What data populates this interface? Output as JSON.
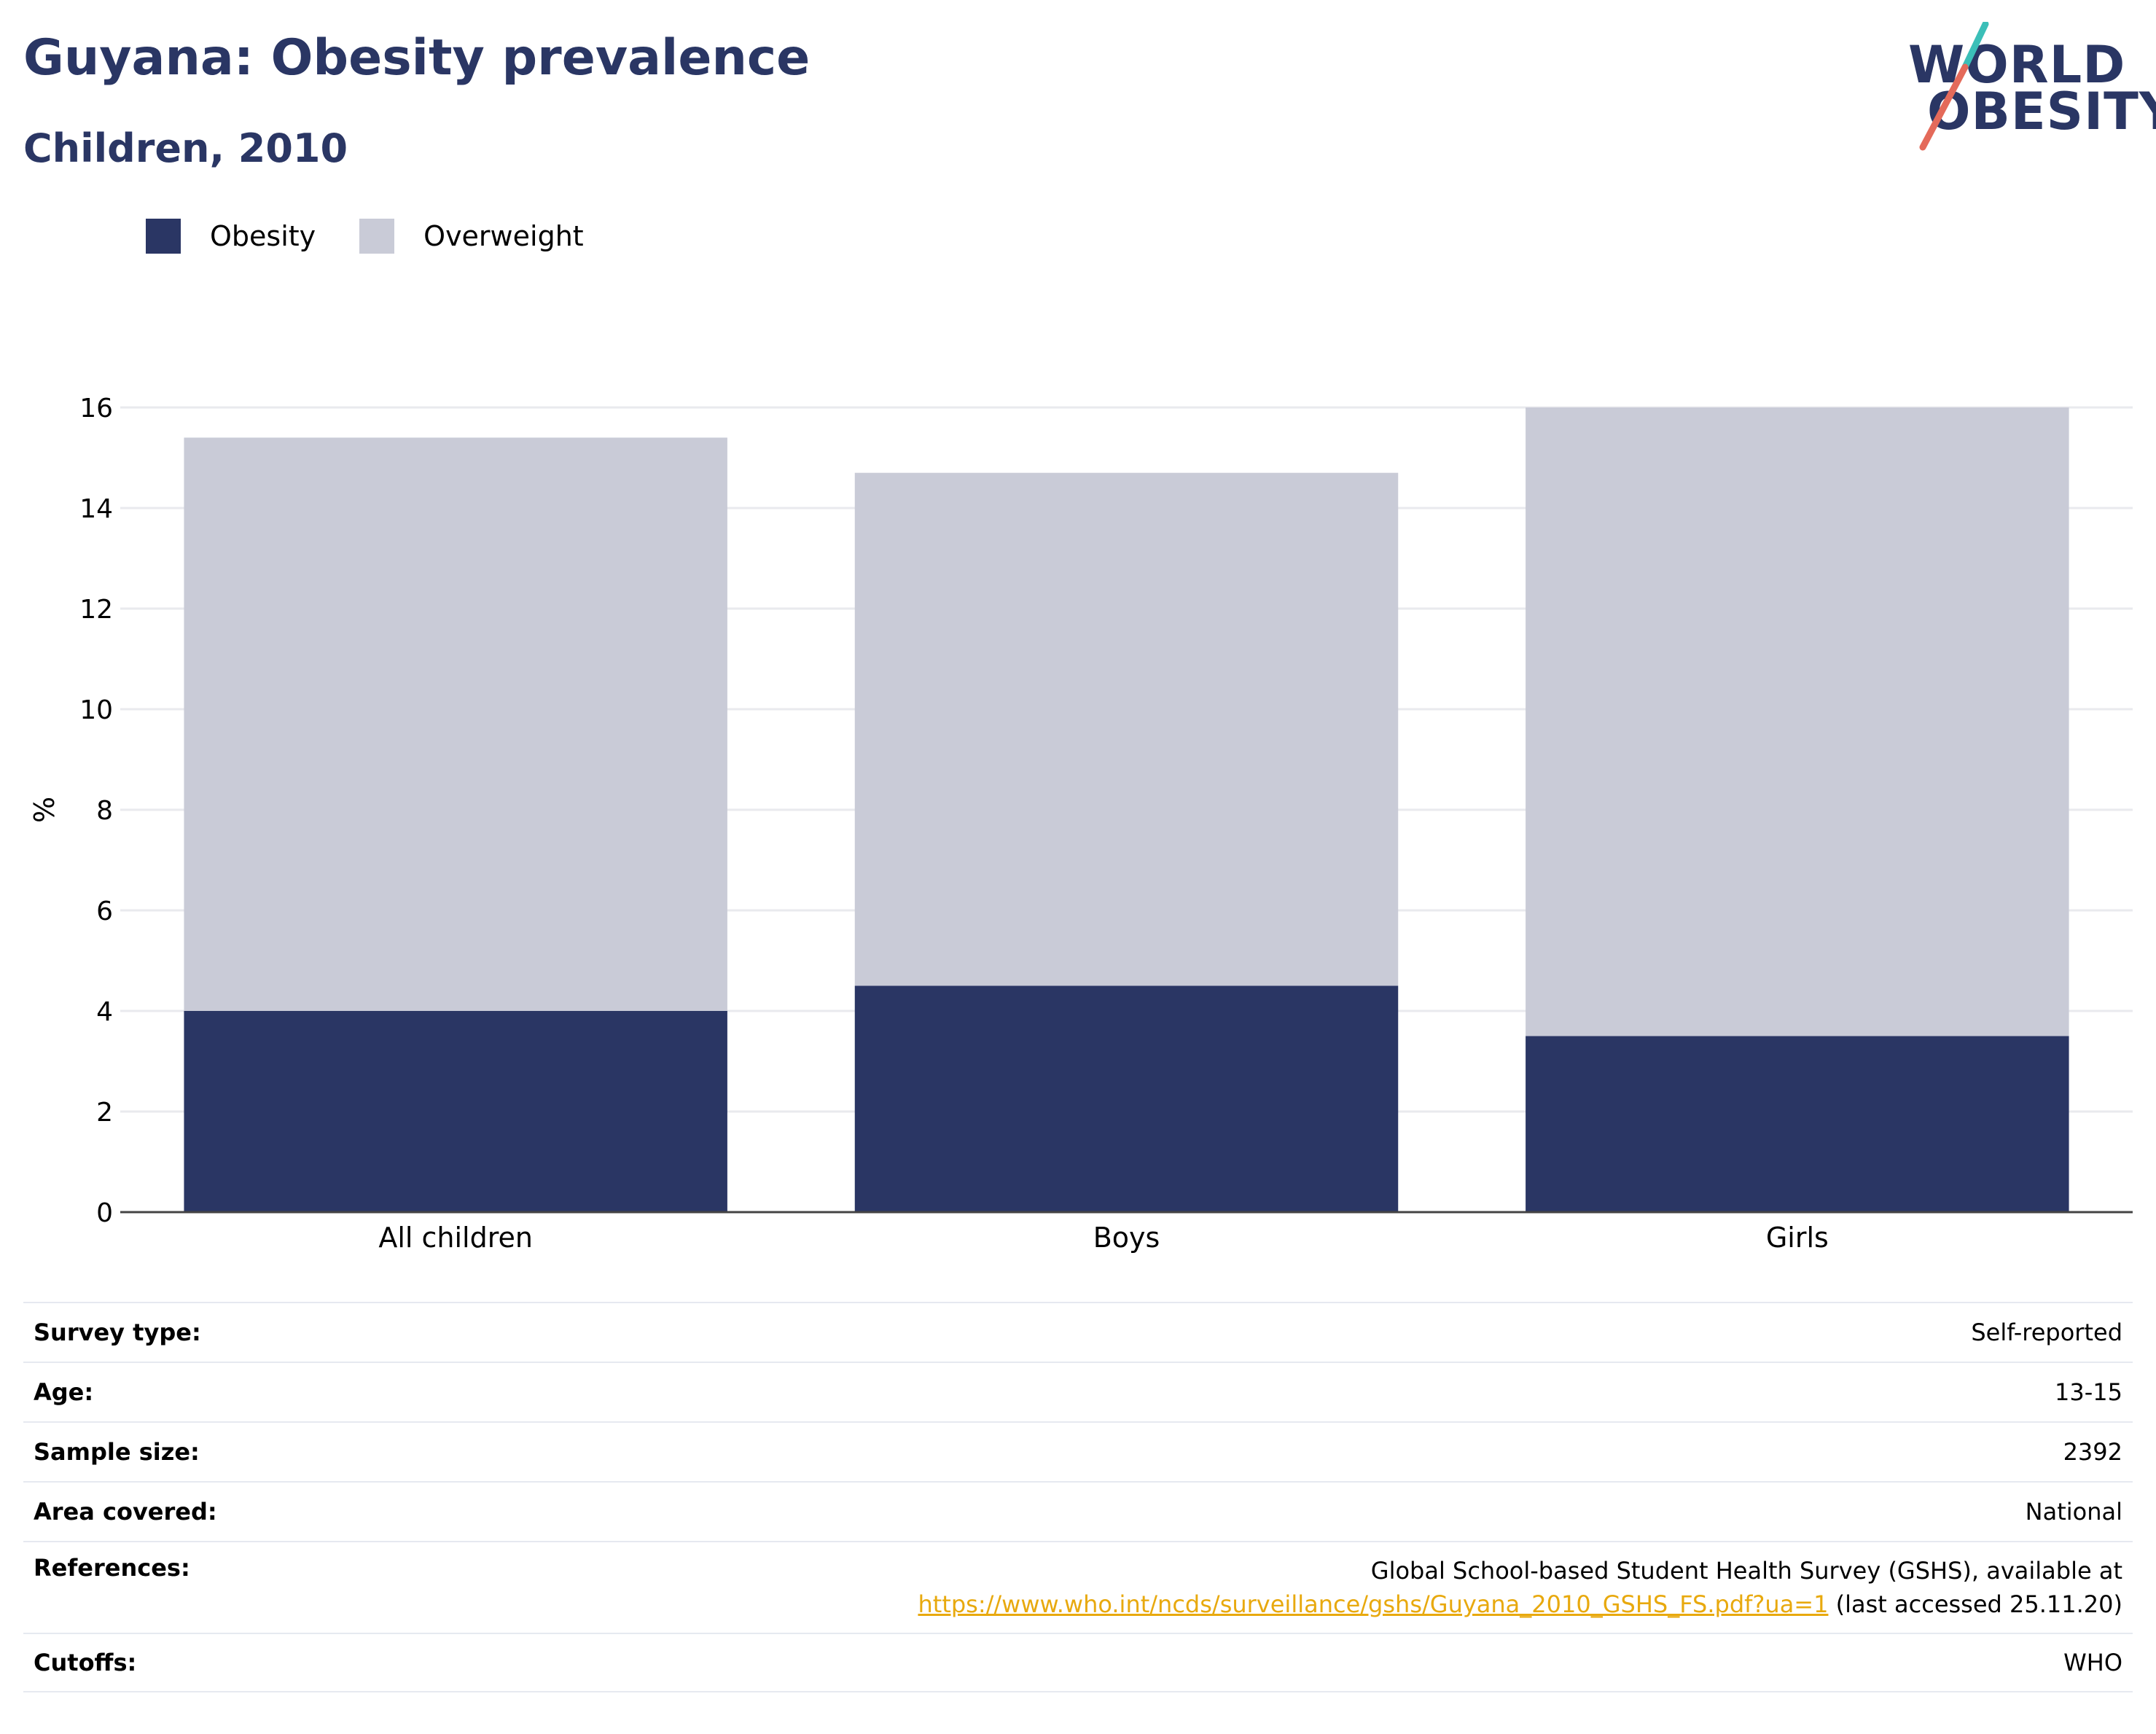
{
  "header": {
    "title": "Guyana: Obesity prevalence",
    "subtitle": "Children, 2010"
  },
  "logo": {
    "line1": "WORLD",
    "line2": "OBESITY"
  },
  "colors": {
    "obesity": "#2a3664",
    "overweight": "#c9cbd7",
    "brand": "#2a3664",
    "accent_teal": "#3bbfb8",
    "accent_coral": "#e46a5a",
    "link": "#e8a90e"
  },
  "legend": [
    {
      "label": "Obesity",
      "color": "#2a3664"
    },
    {
      "label": "Overweight",
      "color": "#c9cbd7"
    }
  ],
  "chart_data": {
    "type": "bar",
    "stacked": true,
    "categories": [
      "All children",
      "Boys",
      "Girls"
    ],
    "series": [
      {
        "name": "Obesity",
        "values": [
          4.0,
          4.5,
          3.5
        ]
      },
      {
        "name": "Overweight",
        "values": [
          11.4,
          10.2,
          12.5
        ]
      }
    ],
    "ylabel": "%",
    "ylim": [
      0,
      16
    ],
    "yticks": [
      0,
      2,
      4,
      6,
      8,
      10,
      12,
      14,
      16
    ],
    "grid": true,
    "legend_position": "top-left"
  },
  "details": {
    "survey_type": {
      "label": "Survey type:",
      "value": "Self-reported"
    },
    "age": {
      "label": "Age:",
      "value": "13-15"
    },
    "sample_size": {
      "label": "Sample size:",
      "value": "2392"
    },
    "area_covered": {
      "label": "Area covered:",
      "value": "National"
    },
    "references": {
      "label": "References:",
      "text": "Global School-based Student Health Survey (GSHS), available at",
      "link": "https://www.who.int/ncds/surveillance/gshs/Guyana_2010_GSHS_FS.pdf?ua=1",
      "suffix": " (last accessed 25.11.20)"
    },
    "cutoffs": {
      "label": "Cutoffs:",
      "value": "WHO"
    }
  }
}
